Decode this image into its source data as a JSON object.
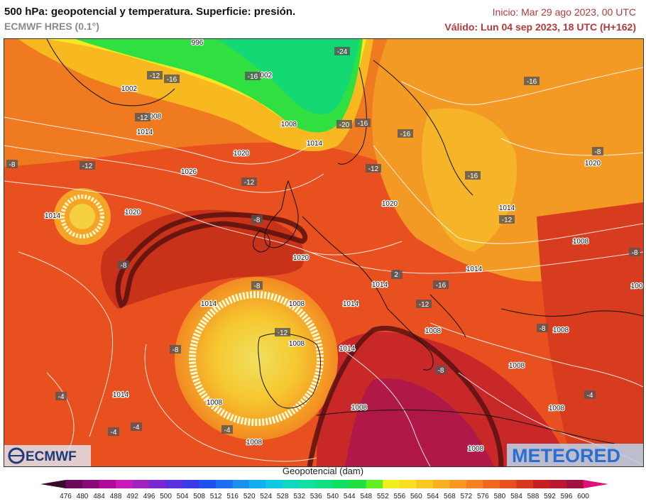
{
  "header": {
    "title": "500 hPa: geopotencial y temperatura. Superficie: presión.",
    "model": "ECMWF HRES (0.1°)",
    "init": "Inicio: Mar 29 ago 2023, 00 UTC",
    "valid": "Válido: Lun 04 sep 2023, 18 UTC (H+162)"
  },
  "logos": {
    "left": "ECMWF",
    "right": "METEORED"
  },
  "colorbar": {
    "title": "Geopotencial (dam)",
    "ticks": [
      "476",
      "480",
      "484",
      "488",
      "492",
      "496",
      "500",
      "504",
      "508",
      "512",
      "516",
      "520",
      "524",
      "528",
      "532",
      "536",
      "540",
      "544",
      "548",
      "552",
      "556",
      "560",
      "564",
      "568",
      "572",
      "576",
      "580",
      "584",
      "588",
      "592",
      "596",
      "600"
    ],
    "colors": [
      "#3a0a2a",
      "#6a0a5a",
      "#8a0a7a",
      "#b00a9a",
      "#c81ab8",
      "#a020c0",
      "#7a28d0",
      "#5a30e0",
      "#3a3ae8",
      "#2050f0",
      "#1a70f0",
      "#1a90f0",
      "#10b0f0",
      "#10c8e0",
      "#10d8c0",
      "#10e0a0",
      "#10e080",
      "#10e060",
      "#20e040",
      "#60f020",
      "#f0f020",
      "#f8e020",
      "#f8c820",
      "#f8b020",
      "#f89820",
      "#f88020",
      "#f06820",
      "#e85020",
      "#d83820",
      "#c82020",
      "#b81830",
      "#a01040",
      "#e0107a"
    ]
  },
  "map_labels": {
    "pressure": [
      {
        "t": "996"
      },
      {
        "t": "1002"
      },
      {
        "t": "1002"
      },
      {
        "t": "1008"
      },
      {
        "t": "1008"
      },
      {
        "t": "1014"
      },
      {
        "t": "1014"
      },
      {
        "t": "1020"
      },
      {
        "t": "1026"
      },
      {
        "t": "1014"
      },
      {
        "t": "1020"
      },
      {
        "t": "1020"
      },
      {
        "t": "1020"
      },
      {
        "t": "1014"
      },
      {
        "t": "1020"
      },
      {
        "t": "1014"
      },
      {
        "t": "1014"
      },
      {
        "t": "1014"
      },
      {
        "t": "1014"
      },
      {
        "t": "1008"
      },
      {
        "t": "1008"
      },
      {
        "t": "1014"
      },
      {
        "t": "1008"
      },
      {
        "t": "1008"
      },
      {
        "t": "1014"
      },
      {
        "t": "1008"
      },
      {
        "t": "1008"
      },
      {
        "t": "1008"
      },
      {
        "t": "1008"
      },
      {
        "t": "1008"
      },
      {
        "t": "1008"
      },
      {
        "t": "1008"
      },
      {
        "t": "100"
      }
    ],
    "temperature": [
      {
        "t": "-24"
      },
      {
        "t": "-12"
      },
      {
        "t": "-16"
      },
      {
        "t": "-16"
      },
      {
        "t": "-12"
      },
      {
        "t": "-20"
      },
      {
        "t": "-16"
      },
      {
        "t": "-16"
      },
      {
        "t": "-16"
      },
      {
        "t": "-12"
      },
      {
        "t": "-12"
      },
      {
        "t": "-12"
      },
      {
        "t": "-16"
      },
      {
        "t": "-12"
      },
      {
        "t": "-8"
      },
      {
        "t": "-8"
      },
      {
        "t": "-8"
      },
      {
        "t": "-8"
      },
      {
        "t": "-16"
      },
      {
        "t": "-12"
      },
      {
        "t": "-12"
      },
      {
        "t": "-8"
      },
      {
        "t": "-8"
      },
      {
        "t": "-8"
      },
      {
        "t": "-8"
      },
      {
        "t": "-4"
      },
      {
        "t": "-4"
      },
      {
        "t": "-4"
      },
      {
        "t": "-4"
      },
      {
        "t": "-4"
      },
      {
        "t": "-8"
      },
      {
        "t": "-8"
      },
      {
        "t": "2"
      }
    ]
  }
}
